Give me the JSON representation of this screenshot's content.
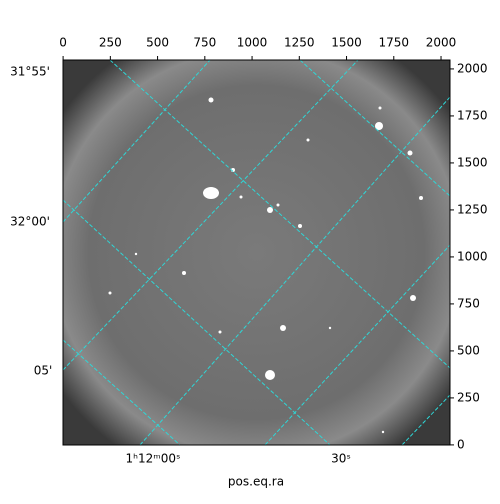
{
  "chart_data": {
    "type": "image",
    "xlim": [
      -0.5,
      2047.5
    ],
    "xticks": [
      0,
      250,
      500,
      750,
      1000,
      1250,
      1500,
      1750,
      2000
    ],
    "ylim": [
      -0.5,
      2047.5
    ],
    "yticks": [
      0,
      250,
      500,
      750,
      1000,
      1250,
      1500,
      1750,
      2000
    ],
    "xlabel": "pos.eq.ra",
    "dec_labels": [
      "31°55'",
      "32°00'",
      "05'"
    ],
    "ra_labels": [
      "1ʰ12ᵐ00ˢ",
      "30ˢ"
    ],
    "grid": true,
    "grid_color": "#2fd6d6"
  }
}
